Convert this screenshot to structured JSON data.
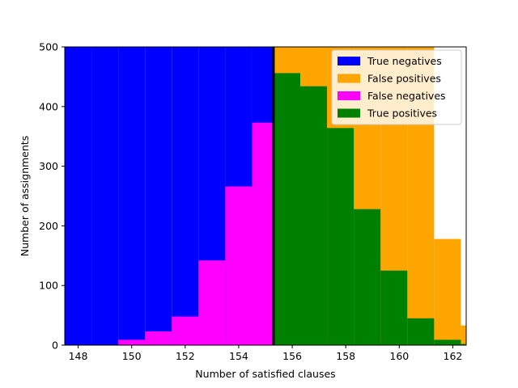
{
  "chart_data": {
    "type": "bar",
    "title": "",
    "xlabel": "Number of satisfied clauses",
    "ylabel": "Number of assignments",
    "xlim": [
      147.5,
      162.5
    ],
    "ylim": [
      0,
      500
    ],
    "x_ticks": [
      148,
      150,
      152,
      154,
      156,
      158,
      160,
      162
    ],
    "y_ticks": [
      0,
      100,
      200,
      300,
      400,
      500
    ],
    "threshold": 155.3,
    "grid": false,
    "legend_position": "top-right",
    "bin_edges": [
      147.5,
      148.5,
      149.5,
      150.5,
      151.5,
      152.5,
      153.5,
      154.5,
      155.3,
      156.3,
      157.3,
      158.3,
      159.3,
      160.3,
      161.3,
      162.3,
      162.5
    ],
    "series": [
      {
        "name": "True negatives",
        "color": "#0000ff",
        "layer": "background",
        "values": [
          500,
          500,
          500,
          500,
          500,
          500,
          500,
          500,
          0,
          0,
          0,
          0,
          0,
          0,
          0,
          0
        ]
      },
      {
        "name": "False positives",
        "color": "#ffa500",
        "layer": "background",
        "values": [
          0,
          0,
          0,
          0,
          0,
          0,
          0,
          0,
          500,
          500,
          500,
          500,
          500,
          500,
          178,
          33
        ]
      },
      {
        "name": "False negatives",
        "color": "#ff00ff",
        "layer": "foreground",
        "values": [
          0,
          0,
          9,
          23,
          48,
          142,
          266,
          373,
          0,
          0,
          0,
          0,
          0,
          0,
          0,
          0
        ]
      },
      {
        "name": "True positives",
        "color": "#008000",
        "layer": "foreground",
        "values": [
          0,
          0,
          0,
          0,
          0,
          0,
          0,
          0,
          456,
          434,
          364,
          228,
          125,
          45,
          9,
          2
        ]
      }
    ]
  }
}
